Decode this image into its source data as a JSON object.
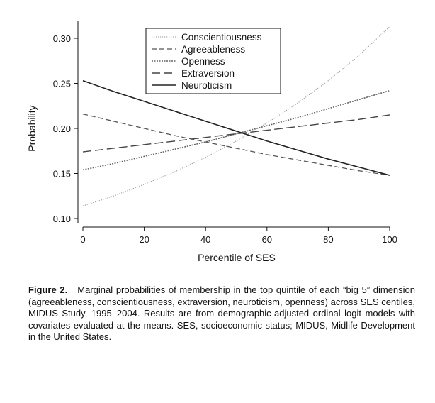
{
  "chart_data": {
    "type": "line",
    "title": "",
    "xlabel": "Percentile of SES",
    "ylabel": "Probability",
    "xlim": [
      0,
      100
    ],
    "ylim": [
      0.1,
      0.32
    ],
    "xticks": [
      0,
      20,
      40,
      60,
      80,
      100
    ],
    "xtick_labels": [
      "0",
      "20",
      "40",
      "60",
      "80",
      "100"
    ],
    "yticks": [
      0.1,
      0.15,
      0.2,
      0.25,
      0.3
    ],
    "ytick_labels": [
      "0.10",
      "0.15",
      "0.20",
      "0.25",
      "0.30"
    ],
    "grid": false,
    "legend_position": "top-center",
    "x": [
      0,
      10,
      20,
      30,
      40,
      50,
      60,
      70,
      80,
      90,
      100
    ],
    "series": [
      {
        "name": "Conscientiousness",
        "style": "dotted",
        "color": "#9a9a9a",
        "values": [
          0.114,
          0.125,
          0.138,
          0.152,
          0.168,
          0.186,
          0.206,
          0.228,
          0.253,
          0.281,
          0.313
        ]
      },
      {
        "name": "Agreeableness",
        "style": "dashed",
        "color": "#555555",
        "values": [
          0.216,
          0.208,
          0.2,
          0.192,
          0.185,
          0.178,
          0.171,
          0.165,
          0.159,
          0.153,
          0.148
        ]
      },
      {
        "name": "Openness",
        "style": "dotted-dense",
        "color": "#666666",
        "values": [
          0.154,
          0.161,
          0.169,
          0.177,
          0.185,
          0.194,
          0.203,
          0.212,
          0.222,
          0.232,
          0.242
        ]
      },
      {
        "name": "Extraversion",
        "style": "long-dash",
        "color": "#444444",
        "values": [
          0.174,
          0.178,
          0.182,
          0.186,
          0.19,
          0.194,
          0.198,
          0.202,
          0.206,
          0.21,
          0.215
        ]
      },
      {
        "name": "Neuroticism",
        "style": "solid",
        "color": "#222222",
        "values": [
          0.253,
          0.241,
          0.23,
          0.219,
          0.208,
          0.197,
          0.186,
          0.176,
          0.166,
          0.157,
          0.148
        ]
      }
    ]
  },
  "caption": {
    "label": "Figure 2.",
    "text": "Marginal probabilities of membership in the top quintile of each “big 5” dimension (agreeableness, conscientiousness, extraversion, neuroticism, openness) across SES centiles, MIDUS Study, 1995–2004. Results are from demographic-adjusted ordinal logit models with covariates evaluated at the means. SES, socioeconomic status; MIDUS, Midlife Development in the United States."
  }
}
